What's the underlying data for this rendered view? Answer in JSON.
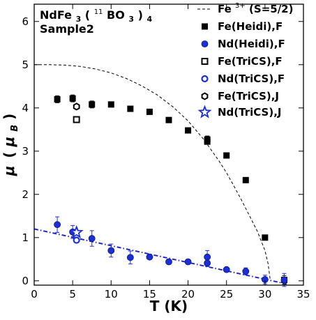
{
  "chart_data": {
    "type": "scatter",
    "title": "NdFe3(11BO3)4",
    "title_parts": {
      "compound_a": "NdFe",
      "sub_a": "3",
      "paren_open": "(",
      "sup_iso": "11",
      "bo": "BO",
      "sub_b": "3",
      "paren_close": ")",
      "sub_c": "4"
    },
    "subtitle": "Sample2",
    "xlabel": "T (K)",
    "ylabel_parts": {
      "mu": "μ",
      "open": "(",
      "mu2": "μ",
      "sub": "B",
      "close": ")"
    },
    "xlim": [
      0,
      35
    ],
    "ylim": [
      -0.1,
      6.4
    ],
    "xticks": [
      "0",
      "5",
      "10",
      "15",
      "20",
      "25",
      "30",
      "35"
    ],
    "yticks": [
      "0",
      "1",
      "2",
      "3",
      "4",
      "5",
      "6"
    ],
    "legend_position": "top-right",
    "grid": false,
    "fe_curve": {
      "name": "Fe3+ (S=5/2)",
      "label_parts": {
        "base": "Fe",
        "sup": "3+",
        "rest": " (S=5/2)"
      },
      "color": "#000000",
      "style": "dashed",
      "x": [
        0,
        2,
        4,
        6,
        8,
        10,
        12,
        14,
        16,
        18,
        20,
        22,
        24,
        25,
        26,
        27,
        28,
        29,
        30,
        30.4,
        30.7
      ],
      "y": [
        5.0,
        5.0,
        4.99,
        4.96,
        4.9,
        4.81,
        4.68,
        4.51,
        4.3,
        4.03,
        3.7,
        3.28,
        2.78,
        2.5,
        2.18,
        1.85,
        1.5,
        1.15,
        0.7,
        0.4,
        0.0
      ]
    },
    "nd_fit": {
      "color": "#2222cc",
      "style": "dash-dot",
      "x": [
        0,
        33
      ],
      "y": [
        1.2,
        -0.08
      ]
    },
    "series": [
      {
        "name": "Fe(Heidi),F",
        "marker": "filled-square",
        "color": "#000000",
        "x": [
          3,
          5,
          7.5,
          10,
          12.5,
          15,
          17.5,
          20,
          22.5,
          22.5,
          25,
          27.5,
          30,
          32.5
        ],
        "y": [
          4.2,
          4.22,
          4.08,
          4.08,
          3.98,
          3.91,
          3.72,
          3.48,
          3.27,
          3.22,
          2.9,
          2.33,
          1.0,
          0.02
        ],
        "err": [
          0.08,
          0.08,
          0.08,
          0.05,
          0.05,
          0.05,
          0.05,
          0.05,
          0.08,
          0.05,
          0.05,
          0.05,
          0.05,
          0.1
        ]
      },
      {
        "name": "Nd(Heidi),F",
        "marker": "filled-circle",
        "color": "#1a2fd6",
        "x": [
          3,
          5,
          7.5,
          10,
          12.5,
          15,
          17.5,
          20,
          22.5,
          22.5,
          25,
          27.5,
          30,
          32.5
        ],
        "y": [
          1.3,
          1.13,
          0.98,
          0.7,
          0.54,
          0.55,
          0.44,
          0.44,
          0.55,
          0.41,
          0.26,
          0.22,
          0.03,
          0.02
        ],
        "err": [
          0.18,
          0.15,
          0.18,
          0.15,
          0.15,
          0.05,
          0.05,
          0.05,
          0.15,
          0.08,
          0.05,
          0.08,
          0.1,
          0.15
        ]
      },
      {
        "name": "Fe(TriCS),F",
        "marker": "open-square",
        "color": "#000000",
        "x": [
          5.5
        ],
        "y": [
          3.73
        ],
        "err": [
          0
        ]
      },
      {
        "name": "Nd(TriCS),F",
        "marker": "open-circle",
        "color": "#1a2fd6",
        "x": [
          5.5
        ],
        "y": [
          0.94
        ],
        "err": [
          0
        ]
      },
      {
        "name": "Fe(TriCS),J",
        "marker": "open-hexagon",
        "color": "#000000",
        "x": [
          5.5
        ],
        "y": [
          4.03
        ],
        "err": [
          0
        ]
      },
      {
        "name": "Nd(TriCS),J",
        "marker": "open-star",
        "color": "#1a2fd6",
        "x": [
          5.5
        ],
        "y": [
          1.12
        ],
        "err": [
          0
        ]
      }
    ]
  }
}
